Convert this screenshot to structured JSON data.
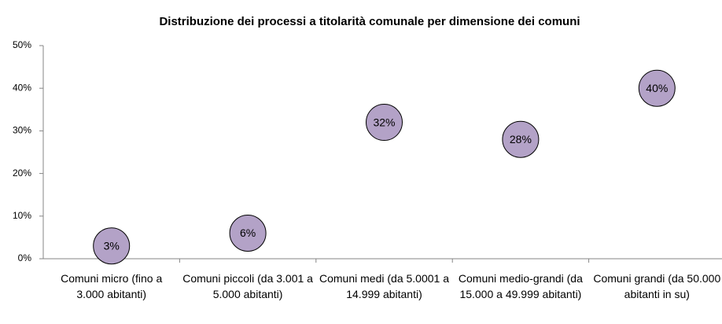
{
  "chart_data": {
    "type": "scatter",
    "title": "Distribuzione dei processi a titolarità comunale per dimensione dei comuni",
    "categories": [
      "Comuni micro (fino a 3.000 abitanti)",
      "Comuni piccoli (da 3.001 a 5.000 abitanti)",
      "Comuni medi (da 5.0001 a 14.999 abitanti)",
      "Comuni medio-grandi (da 15.000 a 49.999 abitanti)",
      "Comuni grandi (da 50.000 abitanti in su)"
    ],
    "values": [
      3,
      6,
      32,
      28,
      40
    ],
    "value_labels": [
      "3%",
      "6%",
      "32%",
      "28%",
      "40%"
    ],
    "color": "#b3a2c7",
    "ylim": [
      0,
      50
    ],
    "yticks": [
      {
        "value": 0,
        "label": "0%"
      },
      {
        "value": 10,
        "label": "10%"
      },
      {
        "value": 20,
        "label": "20%"
      },
      {
        "value": 30,
        "label": "30%"
      },
      {
        "value": 40,
        "label": "40%"
      },
      {
        "value": 50,
        "label": "50%"
      }
    ],
    "grid": false
  }
}
